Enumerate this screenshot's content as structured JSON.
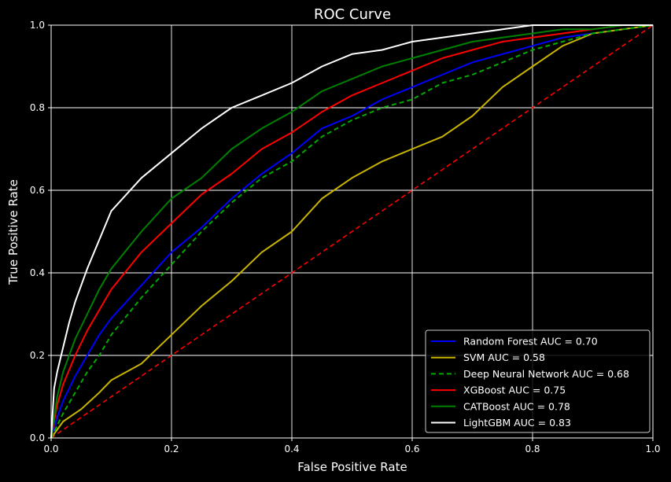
{
  "chart_data": {
    "type": "line",
    "title": "ROC Curve",
    "xlabel": "False Positive Rate",
    "ylabel": "True Positive Rate",
    "xlim": [
      0,
      1
    ],
    "ylim": [
      0,
      1
    ],
    "xticks": [
      "0.0",
      "0.2",
      "0.4",
      "0.6",
      "0.8",
      "1.0"
    ],
    "yticks": [
      "0.0",
      "0.2",
      "0.4",
      "0.6",
      "0.8",
      "1.0"
    ],
    "grid": true,
    "legend_position": "lower-right",
    "background": "#000000",
    "foreground": "#ffffff",
    "series": [
      {
        "name": "Random Forest AUC = 0.70",
        "color": "#0000ff",
        "style": "solid",
        "x": [
          0,
          0.01,
          0.02,
          0.04,
          0.06,
          0.08,
          0.1,
          0.15,
          0.2,
          0.25,
          0.3,
          0.35,
          0.4,
          0.45,
          0.5,
          0.55,
          0.6,
          0.65,
          0.7,
          0.75,
          0.8,
          0.85,
          0.9,
          0.95,
          1.0
        ],
        "y": [
          0,
          0.05,
          0.09,
          0.15,
          0.2,
          0.25,
          0.29,
          0.37,
          0.45,
          0.51,
          0.58,
          0.64,
          0.69,
          0.75,
          0.78,
          0.82,
          0.85,
          0.88,
          0.91,
          0.93,
          0.95,
          0.97,
          0.98,
          0.99,
          1.0
        ]
      },
      {
        "name": "SVM AUC = 0.58",
        "color": "#c8b400",
        "style": "solid",
        "x": [
          0,
          0.02,
          0.05,
          0.08,
          0.1,
          0.15,
          0.2,
          0.25,
          0.3,
          0.35,
          0.4,
          0.45,
          0.5,
          0.55,
          0.6,
          0.65,
          0.7,
          0.75,
          0.8,
          0.85,
          0.9,
          0.95,
          1.0
        ],
        "y": [
          0,
          0.04,
          0.07,
          0.11,
          0.14,
          0.18,
          0.25,
          0.32,
          0.38,
          0.45,
          0.5,
          0.58,
          0.63,
          0.67,
          0.7,
          0.73,
          0.78,
          0.85,
          0.9,
          0.95,
          0.98,
          0.99,
          1.0
        ]
      },
      {
        "name": "Deep Neural Network AUC = 0.68",
        "color": "#00aa00",
        "style": "dashed",
        "x": [
          0,
          0.02,
          0.04,
          0.06,
          0.08,
          0.1,
          0.15,
          0.2,
          0.25,
          0.3,
          0.35,
          0.4,
          0.45,
          0.5,
          0.55,
          0.6,
          0.65,
          0.7,
          0.75,
          0.8,
          0.85,
          0.9,
          0.95,
          1.0
        ],
        "y": [
          0,
          0.06,
          0.11,
          0.16,
          0.2,
          0.25,
          0.34,
          0.42,
          0.5,
          0.57,
          0.63,
          0.67,
          0.73,
          0.77,
          0.8,
          0.82,
          0.86,
          0.88,
          0.91,
          0.94,
          0.96,
          0.98,
          0.99,
          1.0
        ]
      },
      {
        "name": "XGBoost AUC = 0.75",
        "color": "#ff0000",
        "style": "solid",
        "x": [
          0,
          0.01,
          0.02,
          0.04,
          0.06,
          0.08,
          0.1,
          0.15,
          0.2,
          0.25,
          0.3,
          0.35,
          0.4,
          0.45,
          0.5,
          0.55,
          0.6,
          0.65,
          0.7,
          0.75,
          0.8,
          0.85,
          0.9,
          0.95,
          1.0
        ],
        "y": [
          0,
          0.08,
          0.13,
          0.2,
          0.26,
          0.31,
          0.36,
          0.45,
          0.52,
          0.59,
          0.64,
          0.7,
          0.74,
          0.79,
          0.83,
          0.86,
          0.89,
          0.92,
          0.94,
          0.96,
          0.97,
          0.98,
          0.99,
          1.0,
          1.0
        ]
      },
      {
        "name": "CATBoost AUC = 0.78",
        "color": "#008000",
        "style": "solid",
        "x": [
          0,
          0.01,
          0.02,
          0.04,
          0.06,
          0.08,
          0.1,
          0.15,
          0.2,
          0.25,
          0.3,
          0.35,
          0.4,
          0.45,
          0.5,
          0.55,
          0.6,
          0.65,
          0.7,
          0.75,
          0.8,
          0.85,
          0.9,
          0.95,
          1.0
        ],
        "y": [
          0,
          0.1,
          0.16,
          0.24,
          0.3,
          0.36,
          0.41,
          0.5,
          0.58,
          0.63,
          0.7,
          0.75,
          0.79,
          0.84,
          0.87,
          0.9,
          0.92,
          0.94,
          0.96,
          0.97,
          0.98,
          0.99,
          0.99,
          1.0,
          1.0
        ]
      },
      {
        "name": "LightGBM AUC = 0.83",
        "color": "#ffffff",
        "style": "solid",
        "x": [
          0,
          0.005,
          0.01,
          0.02,
          0.03,
          0.04,
          0.06,
          0.08,
          0.1,
          0.15,
          0.2,
          0.25,
          0.3,
          0.35,
          0.4,
          0.45,
          0.5,
          0.55,
          0.6,
          0.65,
          0.7,
          0.75,
          0.8,
          0.85,
          0.9,
          0.95,
          1.0
        ],
        "y": [
          0,
          0.12,
          0.16,
          0.22,
          0.28,
          0.33,
          0.41,
          0.48,
          0.55,
          0.63,
          0.69,
          0.75,
          0.8,
          0.83,
          0.86,
          0.9,
          0.93,
          0.94,
          0.96,
          0.97,
          0.98,
          0.99,
          1.0,
          1.0,
          1.0,
          1.0,
          1.0
        ]
      }
    ],
    "reference_line": {
      "color": "#ff0000",
      "style": "dashed",
      "x": [
        0,
        1
      ],
      "y": [
        0,
        1
      ]
    }
  }
}
